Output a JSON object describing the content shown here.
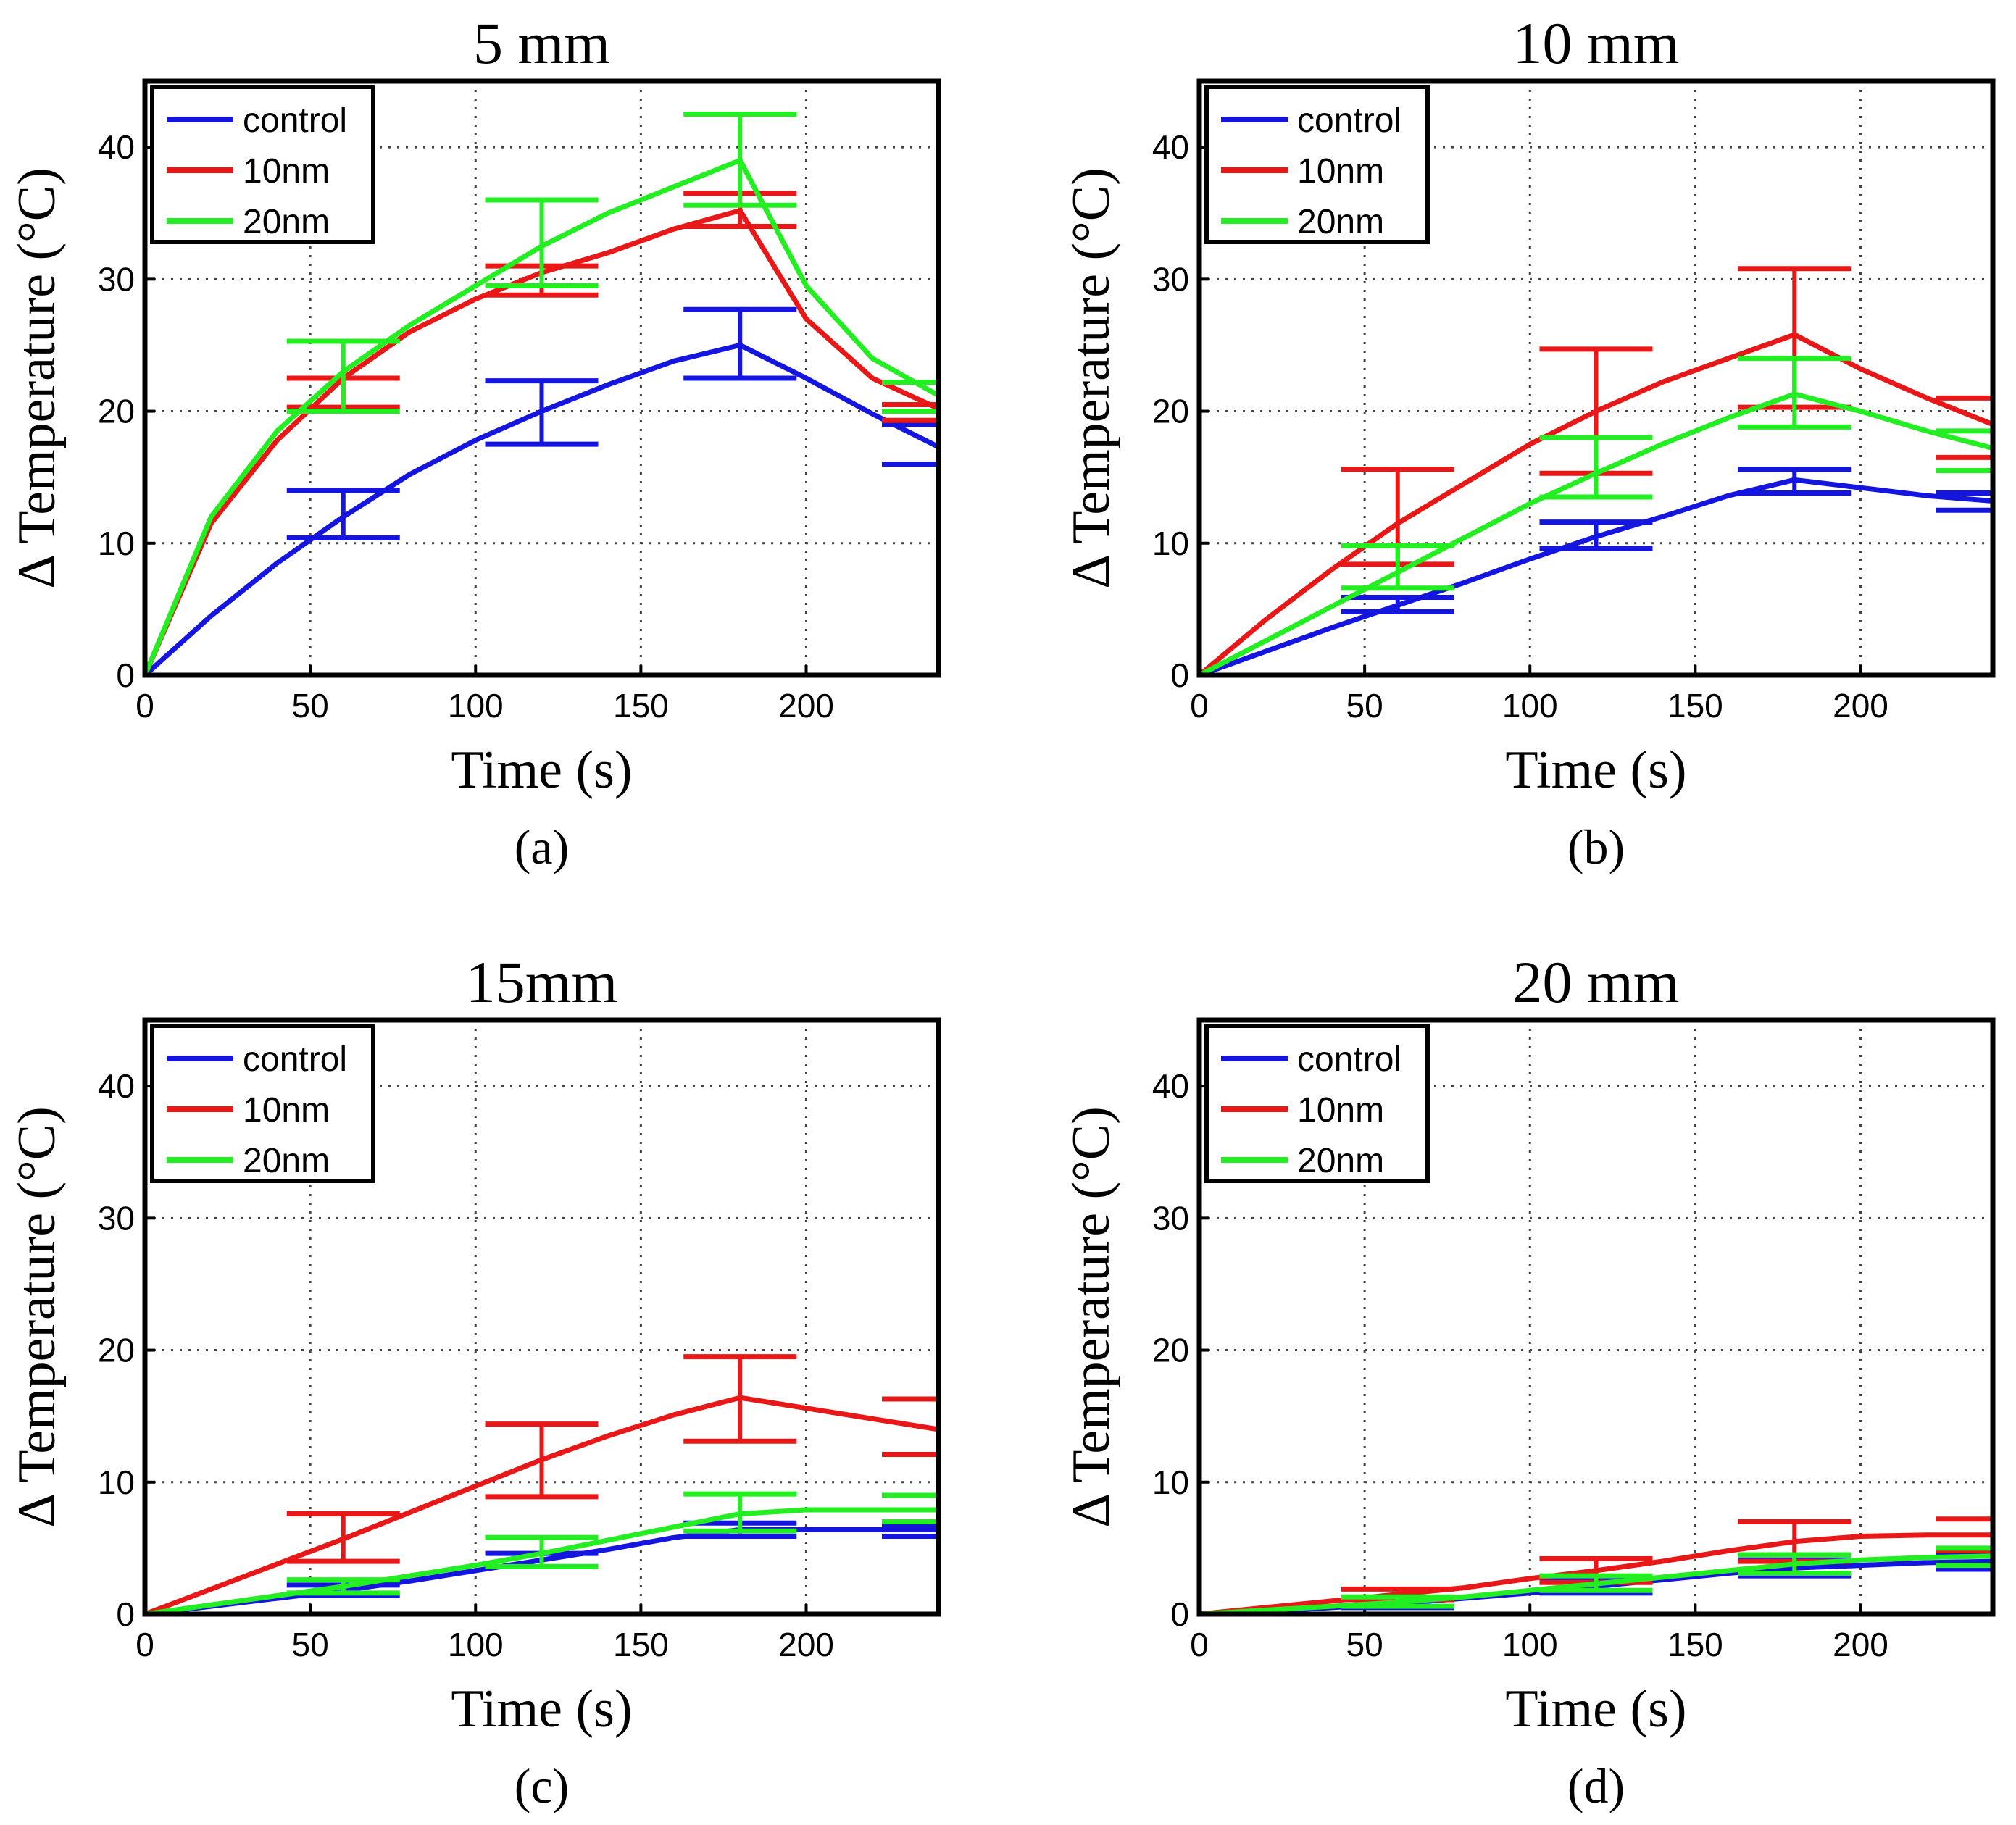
{
  "figure": {
    "colors": {
      "control": "#1515e0",
      "10nm": "#e81818",
      "20nm": "#22ee22"
    }
  },
  "chart_data": [
    {
      "type": "line",
      "panel": "(a)",
      "title": "5 mm",
      "xlabel": "Time (s)",
      "ylabel": "Δ Temperature (°C)",
      "xlim": [
        0,
        240
      ],
      "ylim": [
        0,
        45
      ],
      "xticks": [
        0,
        50,
        100,
        150,
        200
      ],
      "yticks": [
        0,
        10,
        20,
        30,
        40
      ],
      "grid": true,
      "legend": {
        "placement": "top-left",
        "entries": [
          "control",
          "10nm",
          "20nm"
        ]
      },
      "series": [
        {
          "name": "control",
          "color": "#1515e0",
          "x": [
            0,
            20,
            40,
            60,
            80,
            100,
            120,
            140,
            160,
            180,
            200,
            220,
            240
          ],
          "y": [
            0,
            4.5,
            8.5,
            12,
            15.2,
            17.8,
            20,
            22,
            23.8,
            25,
            22.5,
            19.8,
            17.3
          ],
          "errorbars": [
            {
              "x": 60,
              "low": 10.4,
              "high": 14.0
            },
            {
              "x": 120,
              "low": 17.5,
              "high": 22.3
            },
            {
              "x": 180,
              "low": 22.5,
              "high": 27.7
            },
            {
              "x": 240,
              "low": 16.0,
              "high": 19.0
            }
          ]
        },
        {
          "name": "10nm",
          "color": "#e81818",
          "x": [
            0,
            20,
            40,
            60,
            80,
            100,
            120,
            140,
            160,
            180,
            200,
            220,
            240
          ],
          "y": [
            0,
            11.5,
            17.8,
            22.5,
            26,
            28.5,
            30.5,
            32,
            33.8,
            35.2,
            27,
            22.5,
            20.2
          ],
          "errorbars": [
            {
              "x": 60,
              "low": 20.3,
              "high": 22.5
            },
            {
              "x": 120,
              "low": 28.8,
              "high": 31.0
            },
            {
              "x": 180,
              "low": 34.0,
              "high": 36.5
            },
            {
              "x": 240,
              "low": 19.3,
              "high": 20.5
            }
          ]
        },
        {
          "name": "20nm",
          "color": "#22ee22",
          "x": [
            0,
            20,
            40,
            60,
            80,
            100,
            120,
            140,
            160,
            180,
            200,
            220,
            240
          ],
          "y": [
            0,
            12,
            18.5,
            23,
            26.5,
            29.5,
            32.5,
            35,
            37,
            39,
            29.5,
            24,
            21.2
          ],
          "errorbars": [
            {
              "x": 60,
              "low": 20.0,
              "high": 25.3
            },
            {
              "x": 120,
              "low": 29.5,
              "high": 36.0
            },
            {
              "x": 180,
              "low": 35.6,
              "high": 42.5
            },
            {
              "x": 240,
              "low": 20.0,
              "high": 22.2
            }
          ]
        }
      ]
    },
    {
      "type": "line",
      "panel": "(b)",
      "title": "10 mm",
      "xlabel": "Time (s)",
      "ylabel": "Δ Temperature (°C)",
      "xlim": [
        0,
        240
      ],
      "ylim": [
        0,
        45
      ],
      "xticks": [
        0,
        50,
        100,
        150,
        200
      ],
      "yticks": [
        0,
        10,
        20,
        30,
        40
      ],
      "grid": true,
      "legend": {
        "placement": "top-left",
        "entries": [
          "control",
          "10nm",
          "20nm"
        ]
      },
      "series": [
        {
          "name": "control",
          "color": "#1515e0",
          "x": [
            0,
            20,
            40,
            60,
            80,
            100,
            120,
            140,
            160,
            180,
            200,
            220,
            240
          ],
          "y": [
            0,
            1.8,
            3.6,
            5.3,
            7,
            8.8,
            10.5,
            12,
            13.6,
            14.8,
            14.2,
            13.6,
            13.2
          ],
          "errorbars": [
            {
              "x": 60,
              "low": 4.8,
              "high": 5.9
            },
            {
              "x": 120,
              "low": 9.6,
              "high": 11.6
            },
            {
              "x": 180,
              "low": 13.8,
              "high": 15.6
            },
            {
              "x": 240,
              "low": 12.5,
              "high": 13.8
            }
          ]
        },
        {
          "name": "10nm",
          "color": "#e81818",
          "x": [
            0,
            20,
            40,
            60,
            80,
            100,
            120,
            140,
            160,
            180,
            200,
            220,
            240
          ],
          "y": [
            0,
            4.2,
            8,
            11.5,
            14.5,
            17.5,
            20,
            22.2,
            24,
            25.8,
            23.2,
            21,
            19
          ],
          "errorbars": [
            {
              "x": 60,
              "low": 8.4,
              "high": 15.6
            },
            {
              "x": 120,
              "low": 15.3,
              "high": 24.7
            },
            {
              "x": 180,
              "low": 20.3,
              "high": 30.8
            },
            {
              "x": 240,
              "low": 16.5,
              "high": 21.0
            }
          ]
        },
        {
          "name": "20nm",
          "color": "#22ee22",
          "x": [
            0,
            20,
            40,
            60,
            80,
            100,
            120,
            140,
            160,
            180,
            200,
            220,
            240
          ],
          "y": [
            0,
            2.6,
            5.2,
            7.8,
            10.4,
            13,
            15.3,
            17.5,
            19.5,
            21.3,
            20,
            18.5,
            17.2
          ],
          "errorbars": [
            {
              "x": 60,
              "low": 6.6,
              "high": 9.8
            },
            {
              "x": 120,
              "low": 13.5,
              "high": 18.0
            },
            {
              "x": 180,
              "low": 18.8,
              "high": 24.0
            },
            {
              "x": 240,
              "low": 15.5,
              "high": 18.5
            }
          ]
        }
      ]
    },
    {
      "type": "line",
      "panel": "(c)",
      "title": "15mm",
      "xlabel": "Time (s)",
      "ylabel": "Δ Temperature (°C)",
      "xlim": [
        0,
        240
      ],
      "ylim": [
        0,
        45
      ],
      "xticks": [
        0,
        50,
        100,
        150,
        200
      ],
      "yticks": [
        0,
        10,
        20,
        30,
        40
      ],
      "grid": true,
      "legend": {
        "placement": "top-left",
        "entries": [
          "control",
          "10nm",
          "20nm"
        ]
      },
      "series": [
        {
          "name": "control",
          "color": "#1515e0",
          "x": [
            0,
            20,
            40,
            60,
            80,
            100,
            120,
            140,
            160,
            180,
            200,
            220,
            240
          ],
          "y": [
            0,
            0.6,
            1.2,
            1.8,
            2.5,
            3.3,
            4.1,
            4.9,
            5.8,
            6.4,
            6.4,
            6.4,
            6.4
          ],
          "errorbars": [
            {
              "x": 60,
              "low": 1.4,
              "high": 2.2
            },
            {
              "x": 120,
              "low": 3.6,
              "high": 4.6
            },
            {
              "x": 180,
              "low": 5.9,
              "high": 6.9
            },
            {
              "x": 240,
              "low": 5.9,
              "high": 6.8
            }
          ]
        },
        {
          "name": "10nm",
          "color": "#e81818",
          "x": [
            0,
            20,
            40,
            60,
            80,
            100,
            120,
            140,
            160,
            180,
            200,
            220,
            240
          ],
          "y": [
            0,
            1.9,
            3.8,
            5.7,
            7.7,
            9.7,
            11.7,
            13.5,
            15.1,
            16.4,
            15.6,
            14.8,
            14.0
          ],
          "errorbars": [
            {
              "x": 60,
              "low": 4.0,
              "high": 7.6
            },
            {
              "x": 120,
              "low": 8.9,
              "high": 14.4
            },
            {
              "x": 180,
              "low": 13.1,
              "high": 19.5
            },
            {
              "x": 240,
              "low": 12.1,
              "high": 16.3
            }
          ]
        },
        {
          "name": "20nm",
          "color": "#22ee22",
          "x": [
            0,
            20,
            40,
            60,
            80,
            100,
            120,
            140,
            160,
            180,
            200,
            220,
            240
          ],
          "y": [
            0,
            0.7,
            1.4,
            2.1,
            2.9,
            3.7,
            4.6,
            5.6,
            6.6,
            7.6,
            7.9,
            7.9,
            7.9
          ],
          "errorbars": [
            {
              "x": 60,
              "low": 1.6,
              "high": 2.6
            },
            {
              "x": 120,
              "low": 3.6,
              "high": 5.8
            },
            {
              "x": 180,
              "low": 6.3,
              "high": 9.1
            },
            {
              "x": 240,
              "low": 7.0,
              "high": 9.0
            }
          ]
        }
      ]
    },
    {
      "type": "line",
      "panel": "(d)",
      "title": "20 mm",
      "xlabel": "Time (s)",
      "ylabel": "Δ Temperature (°C)",
      "xlim": [
        0,
        240
      ],
      "ylim": [
        0,
        45
      ],
      "xticks": [
        0,
        50,
        100,
        150,
        200
      ],
      "yticks": [
        0,
        10,
        20,
        30,
        40
      ],
      "grid": true,
      "legend": {
        "placement": "top-left",
        "entries": [
          "control",
          "10nm",
          "20nm"
        ]
      },
      "series": [
        {
          "name": "control",
          "color": "#1515e0",
          "x": [
            0,
            20,
            40,
            60,
            80,
            100,
            120,
            140,
            160,
            180,
            200,
            220,
            240
          ],
          "y": [
            0,
            0.2,
            0.5,
            0.8,
            1.2,
            1.6,
            2.1,
            2.6,
            3.1,
            3.5,
            3.7,
            3.9,
            4.0
          ],
          "errorbars": [
            {
              "x": 60,
              "low": 0.5,
              "high": 1.1
            },
            {
              "x": 120,
              "low": 1.6,
              "high": 2.6
            },
            {
              "x": 180,
              "low": 2.9,
              "high": 4.1
            },
            {
              "x": 240,
              "low": 3.4,
              "high": 4.6
            }
          ]
        },
        {
          "name": "10nm",
          "color": "#e81818",
          "x": [
            0,
            20,
            40,
            60,
            80,
            100,
            120,
            140,
            160,
            180,
            200,
            220,
            240
          ],
          "y": [
            0,
            0.5,
            1.0,
            1.5,
            2.0,
            2.7,
            3.3,
            4.0,
            4.8,
            5.5,
            5.9,
            6.0,
            6.0
          ],
          "errorbars": [
            {
              "x": 60,
              "low": 1.1,
              "high": 1.9
            },
            {
              "x": 120,
              "low": 2.4,
              "high": 4.2
            },
            {
              "x": 180,
              "low": 4.0,
              "high": 7.0
            },
            {
              "x": 240,
              "low": 4.8,
              "high": 7.2
            }
          ]
        },
        {
          "name": "20nm",
          "color": "#22ee22",
          "x": [
            0,
            20,
            40,
            60,
            80,
            100,
            120,
            140,
            160,
            180,
            200,
            220,
            240
          ],
          "y": [
            0,
            0.3,
            0.6,
            0.9,
            1.3,
            1.8,
            2.3,
            2.8,
            3.3,
            3.8,
            4.1,
            4.3,
            4.4
          ],
          "errorbars": [
            {
              "x": 60,
              "low": 0.6,
              "high": 1.3
            },
            {
              "x": 120,
              "low": 1.8,
              "high": 2.9
            },
            {
              "x": 180,
              "low": 3.1,
              "high": 4.5
            },
            {
              "x": 240,
              "low": 3.7,
              "high": 5.0
            }
          ]
        }
      ]
    }
  ]
}
